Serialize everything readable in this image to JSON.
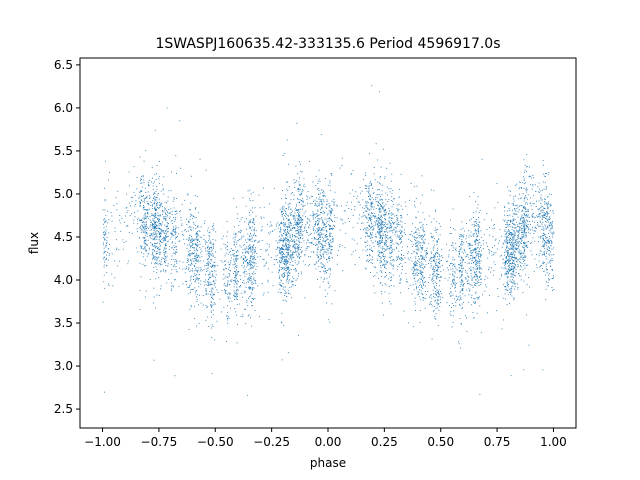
{
  "chart_data": {
    "type": "scatter",
    "title": "1SWASPJ160635.42-333135.6 Period 4596917.0s",
    "xlabel": "phase",
    "ylabel": "flux",
    "xlim": [
      -1.1,
      1.1
    ],
    "ylim": [
      2.28,
      6.58
    ],
    "x_ticks": [
      -1.0,
      -0.75,
      -0.5,
      -0.25,
      0.0,
      0.25,
      0.5,
      0.75,
      1.0
    ],
    "x_tick_labels": [
      "−1.00",
      "−0.75",
      "−0.50",
      "−0.25",
      "0.00",
      "0.25",
      "0.50",
      "0.75",
      "1.00"
    ],
    "y_ticks": [
      2.5,
      3.0,
      3.5,
      4.0,
      4.5,
      5.0,
      5.5,
      6.0,
      6.5
    ],
    "y_tick_labels": [
      "2.5",
      "3.0",
      "3.5",
      "4.0",
      "4.5",
      "5.0",
      "5.5",
      "6.0",
      "6.5"
    ],
    "grid": false,
    "point_color": "#1f77b4",
    "series": [
      {
        "note": "folded light curve, profile repeats with period 1 in phase",
        "phase_profile": [
          {
            "x": -1.0,
            "y": 4.45
          },
          {
            "x": -0.96,
            "y": 4.65
          },
          {
            "x": -0.9,
            "y": 4.8
          },
          {
            "x": -0.85,
            "y": 4.75
          },
          {
            "x": -0.8,
            "y": 4.65
          },
          {
            "x": -0.75,
            "y": 4.55
          },
          {
            "x": -0.7,
            "y": 4.5
          },
          {
            "x": -0.65,
            "y": 4.4
          },
          {
            "x": -0.6,
            "y": 4.3
          },
          {
            "x": -0.55,
            "y": 4.15
          },
          {
            "x": -0.5,
            "y": 4.1
          },
          {
            "x": -0.45,
            "y": 4.05
          },
          {
            "x": -0.4,
            "y": 4.15
          },
          {
            "x": -0.35,
            "y": 4.25
          },
          {
            "x": -0.3,
            "y": 4.35
          },
          {
            "x": -0.25,
            "y": 4.35
          },
          {
            "x": -0.2,
            "y": 4.3
          },
          {
            "x": -0.1,
            "y": 4.75
          },
          {
            "x": -0.05,
            "y": 4.6
          },
          {
            "x": 0.0,
            "y": 4.45
          }
        ],
        "scatter_sigma": 0.28,
        "n_points": 5200
      }
    ]
  }
}
